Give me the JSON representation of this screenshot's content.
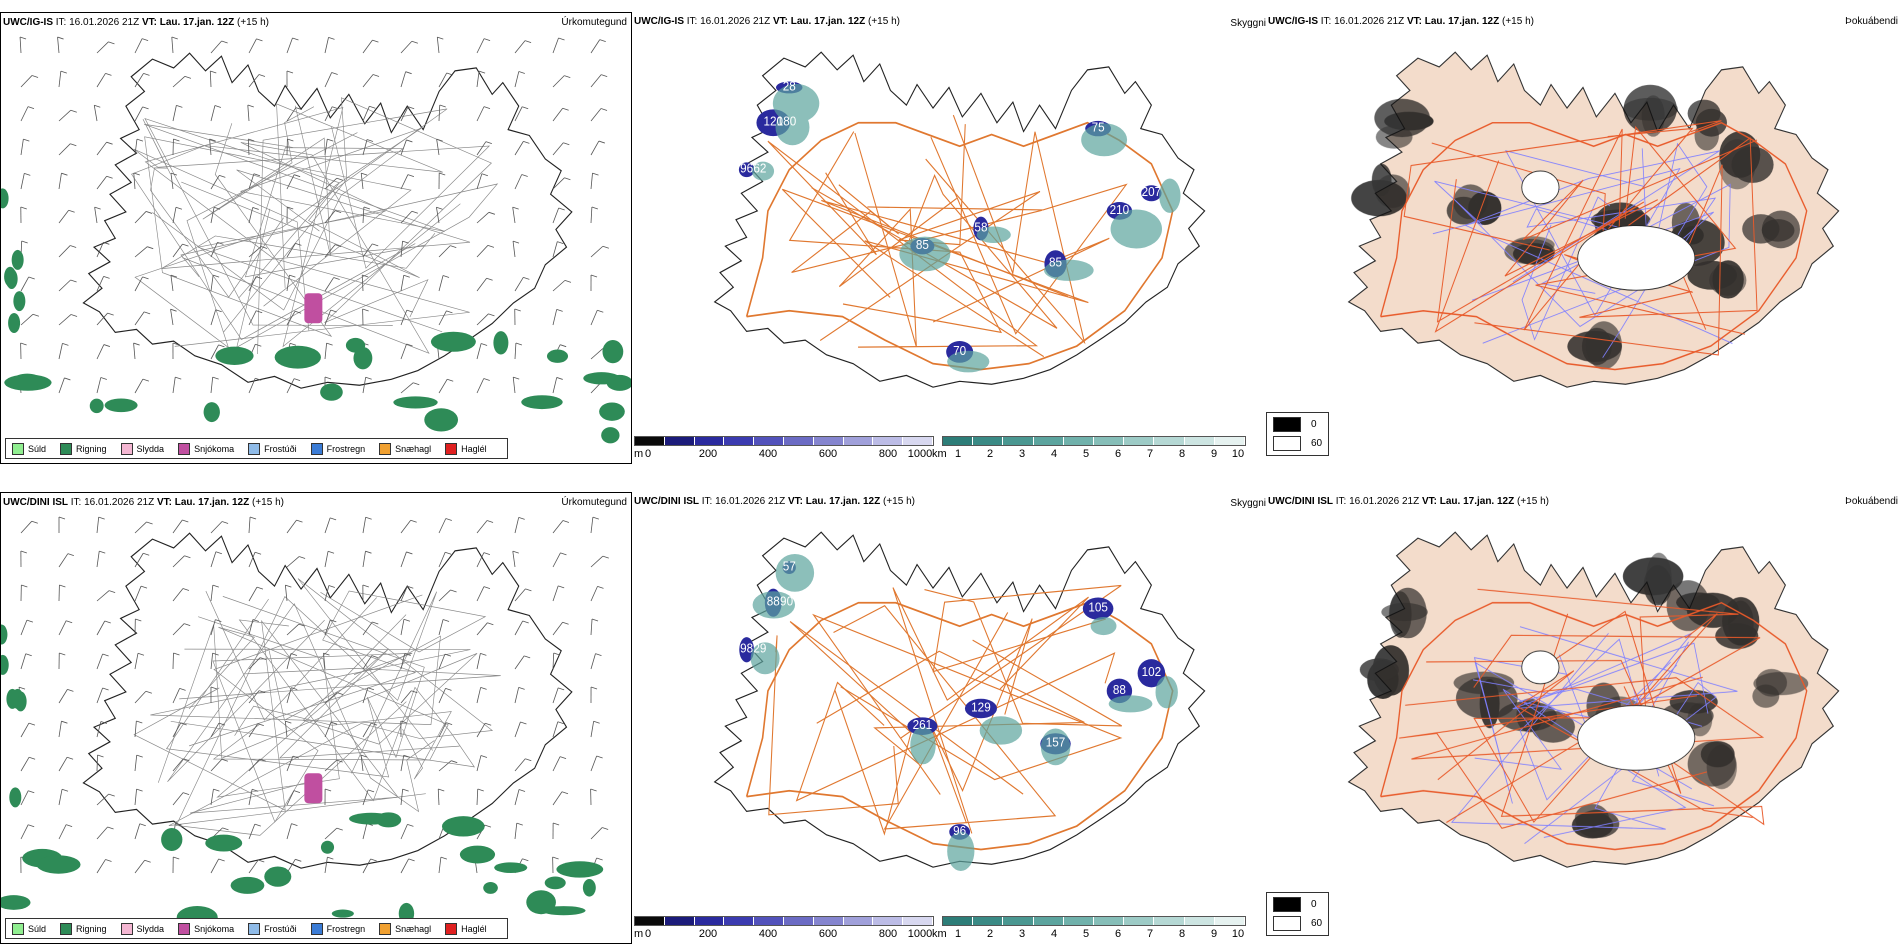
{
  "rows": [
    {
      "model": "UWC/IG-IS",
      "it_label": "IT:",
      "it_value": "16.01.2026 21Z",
      "vt_label": "VT:",
      "vt_value": "Lau. 17.jan. 12Z",
      "lead": "(+15 h)",
      "ceiling_labels": [
        "120",
        "96",
        "75",
        "210",
        "85",
        "85",
        "58",
        "70",
        "207",
        "28",
        "180",
        "62"
      ]
    },
    {
      "model": "UWC/DINI ISL",
      "it_label": "IT:",
      "it_value": "16.01.2026 21Z",
      "vt_label": "VT:",
      "vt_value": "Lau. 17.jan. 12Z",
      "lead": "(+15 h)",
      "ceiling_labels": [
        "88",
        "98",
        "105",
        "88",
        "157",
        "261",
        "129",
        "96",
        "102",
        "57",
        "90",
        "29"
      ]
    }
  ],
  "panel_titles": {
    "precip_type": "Úrkomutegund",
    "visibility": "Skyggni",
    "fog": "Þokuábendi"
  },
  "precip_legend": [
    {
      "label": "Súld",
      "color": "#90ee90"
    },
    {
      "label": "Rigning",
      "color": "#2e8b57"
    },
    {
      "label": "Slydda",
      "color": "#f4b6d2"
    },
    {
      "label": "Snjókoma",
      "color": "#c04fa0"
    },
    {
      "label": "Frostúði",
      "color": "#8fbbe8"
    },
    {
      "label": "Frostregn",
      "color": "#3a7bd5"
    },
    {
      "label": "Snæhagl",
      "color": "#f0a030"
    },
    {
      "label": "Haglél",
      "color": "#e02020"
    }
  ],
  "ceiling_scale": {
    "unit": "m",
    "ticks": [
      "0",
      "200",
      "400",
      "600",
      "800",
      "1000"
    ],
    "colors": [
      "#0a0a0a",
      "#1b1b7a",
      "#2a2a9e",
      "#3b3bb0",
      "#5252bb",
      "#6b6bc4",
      "#8585cf",
      "#a0a0da",
      "#bcbce6",
      "#d8d8f0"
    ]
  },
  "visibility_scale": {
    "unit": "km",
    "ticks": [
      "1",
      "2",
      "3",
      "4",
      "5",
      "6",
      "7",
      "8",
      "9",
      "10"
    ],
    "colors": [
      "#2d7d78",
      "#3a8a85",
      "#4a9791",
      "#5ca49e",
      "#70b1ab",
      "#86beb8",
      "#9dcbc6",
      "#b5d8d4",
      "#cde5e2",
      "#e6f2f0"
    ]
  },
  "fog_scale": [
    {
      "label": "0",
      "color": "#000000"
    },
    {
      "label": "60",
      "color": "#ffffff"
    }
  ],
  "colors": {
    "roads": "#e07830",
    "fog_land": "#f3dccb",
    "fog_roads": "#e85a2a",
    "rivers": "#8080ff",
    "rain": "#2e8b57",
    "snow": "#c04fa0",
    "ceiling": "#2a2a9e",
    "visibility": "#5ca49e"
  }
}
